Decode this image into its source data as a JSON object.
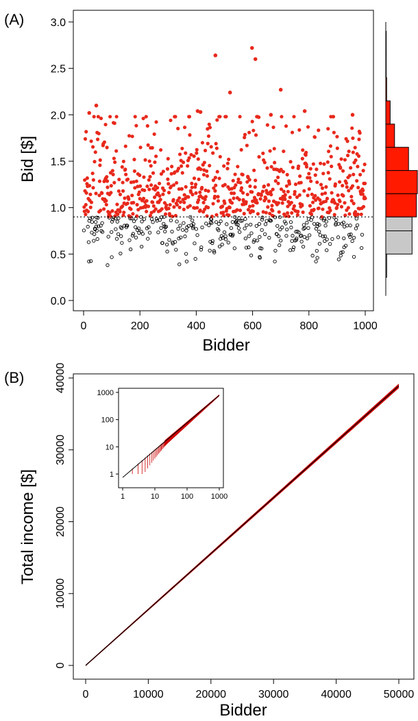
{
  "panels": {
    "a_label": "(A)",
    "b_label": "(B)"
  },
  "colors": {
    "above_threshold": "#e8291c",
    "below_threshold": "#000000",
    "hist_above": "#ff1a00",
    "hist_below": "#c8c8c8",
    "line": "#cc0000"
  },
  "chart_data": [
    {
      "type": "scatter",
      "panel": "A",
      "xlabel": "Bidder",
      "ylabel": "Bid  [$]",
      "xlim": [
        0,
        1000
      ],
      "ylim": [
        0,
        3.0
      ],
      "xticks": [
        0,
        200,
        400,
        600,
        800,
        1000
      ],
      "yticks": [
        0.0,
        0.5,
        1.0,
        1.5,
        2.0,
        2.5,
        3.0
      ],
      "ytick_labels": [
        "0.0",
        "0.5",
        "1.0",
        "1.5",
        "2.0",
        "2.5",
        "3.0"
      ],
      "threshold": 0.9,
      "n_points": 1000,
      "series": [
        {
          "style": "filled red dots above threshold",
          "range": [
            0.9,
            2.72
          ]
        },
        {
          "style": "open black circles below threshold",
          "range": [
            0.38,
            0.9
          ]
        }
      ],
      "highlight_points": [
        {
          "x": 20,
          "y": 2.02
        },
        {
          "x": 45,
          "y": 2.1
        },
        {
          "x": 468,
          "y": 2.64
        },
        {
          "x": 598,
          "y": 2.72
        },
        {
          "x": 610,
          "y": 2.6
        },
        {
          "x": 700,
          "y": 2.27
        },
        {
          "x": 405,
          "y": 2.04
        },
        {
          "x": 415,
          "y": 2.03
        },
        {
          "x": 520,
          "y": 2.24
        },
        {
          "x": 665,
          "y": 2.0
        },
        {
          "x": 785,
          "y": 2.04
        },
        {
          "x": 955,
          "y": 2.0
        },
        {
          "x": 85,
          "y": 0.38
        },
        {
          "x": 340,
          "y": 0.39
        },
        {
          "x": 830,
          "y": 0.46
        },
        {
          "x": 960,
          "y": 0.47
        },
        {
          "x": 625,
          "y": 0.47
        }
      ],
      "marginal_histogram": {
        "bin_width": 0.25,
        "bins": [
          {
            "from": 0.25,
            "to": 0.5,
            "count": 2
          },
          {
            "from": 0.5,
            "to": 0.75,
            "count": 60
          },
          {
            "from": 0.75,
            "to": 0.9,
            "count": 60
          },
          {
            "from": 0.9,
            "to": 1.15,
            "count": 70
          },
          {
            "from": 1.15,
            "to": 1.4,
            "count": 72
          },
          {
            "from": 1.4,
            "to": 1.65,
            "count": 52
          },
          {
            "from": 1.65,
            "to": 1.9,
            "count": 20
          },
          {
            "from": 1.9,
            "to": 2.15,
            "count": 10
          },
          {
            "from": 2.15,
            "to": 2.4,
            "count": 2
          },
          {
            "from": 2.4,
            "to": 2.65,
            "count": 1
          },
          {
            "from": 2.65,
            "to": 2.9,
            "count": 1
          }
        ]
      }
    },
    {
      "type": "line",
      "panel": "B",
      "xlabel": "Bidder",
      "ylabel": "Total income [$]",
      "xlim": [
        0,
        50000
      ],
      "ylim": [
        0,
        40000
      ],
      "xticks": [
        0,
        10000,
        20000,
        30000,
        40000,
        50000
      ],
      "yticks": [
        0,
        10000,
        20000,
        30000,
        40000
      ],
      "x": [
        0,
        50000
      ],
      "y": [
        0,
        38900
      ],
      "band_width": 250,
      "inset": {
        "type": "line",
        "scale": "log-log",
        "xlim": [
          1,
          1000
        ],
        "ylim": [
          1,
          1000
        ],
        "xticks": [
          1,
          10,
          100,
          1000
        ],
        "xtick_labels": [
          "1",
          "10",
          "100",
          "1000"
        ],
        "yticks": [
          1,
          10,
          100,
          1000
        ],
        "ytick_labels": [
          "1",
          "10",
          "100",
          "1000"
        ],
        "x": [
          1,
          1000
        ],
        "y": [
          0.75,
          780
        ],
        "red_spikes": "drops below the trend line at x from 2 to about 30"
      }
    }
  ]
}
